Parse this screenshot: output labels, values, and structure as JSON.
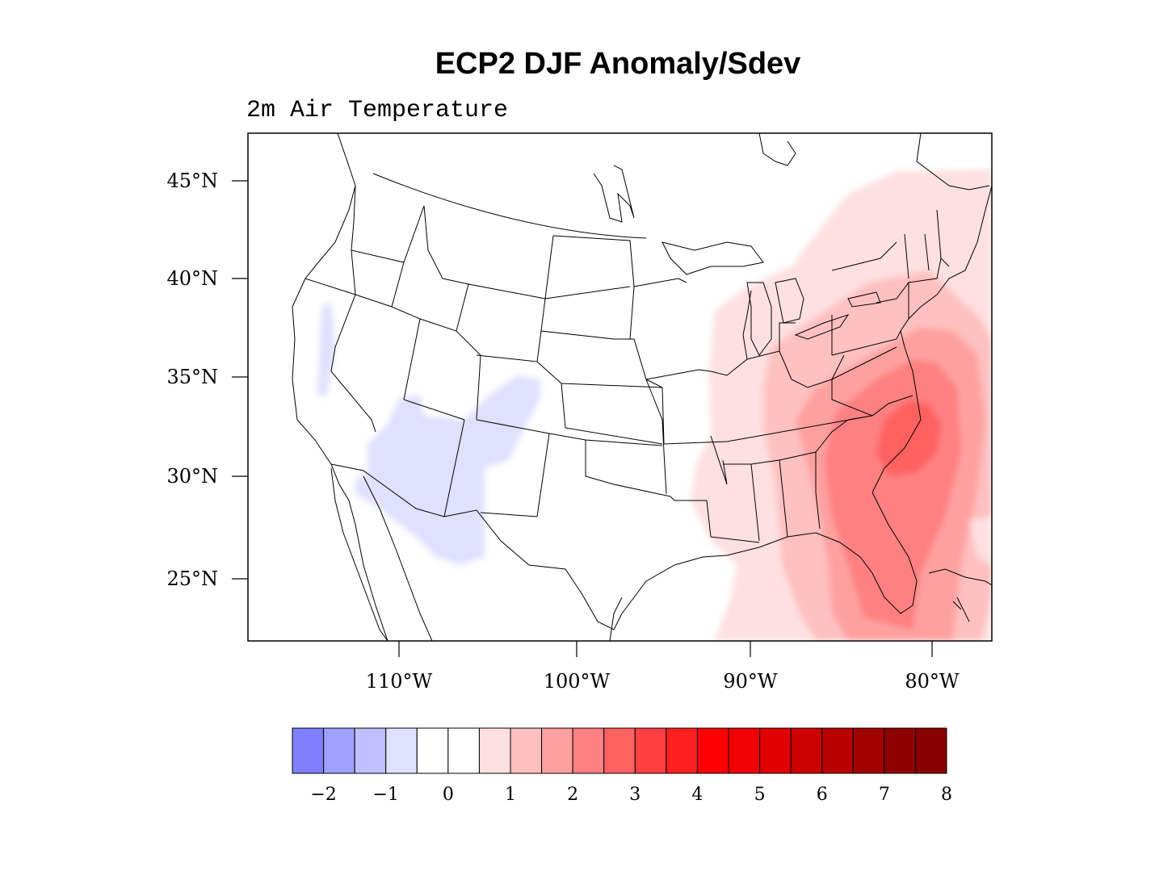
{
  "title": "ECP2 DJF Anomaly/Sdev",
  "subtitle": "2m Air Temperature",
  "map": {
    "lat_ticks": [
      "45°N",
      "40°N",
      "35°N",
      "30°N",
      "25°N"
    ],
    "lon_ticks": [
      "110°W",
      "100°W",
      "90°W",
      "80°W"
    ]
  },
  "colorbar": {
    "labels": [
      "−2",
      "−1",
      "0",
      "1",
      "2",
      "3",
      "4",
      "5",
      "6",
      "7",
      "8"
    ],
    "colors": [
      "#8080ff",
      "#a0a0ff",
      "#c0c0ff",
      "#e0e0ff",
      "#ffffff",
      "#ffffff",
      "#ffe0e0",
      "#ffc0c0",
      "#ffa0a0",
      "#ff8080",
      "#ff6060",
      "#ff4040",
      "#ff2020",
      "#ff0000",
      "#f00000",
      "#e00000",
      "#cc0000",
      "#b80000",
      "#a00000",
      "#900000",
      "#880000"
    ]
  }
}
